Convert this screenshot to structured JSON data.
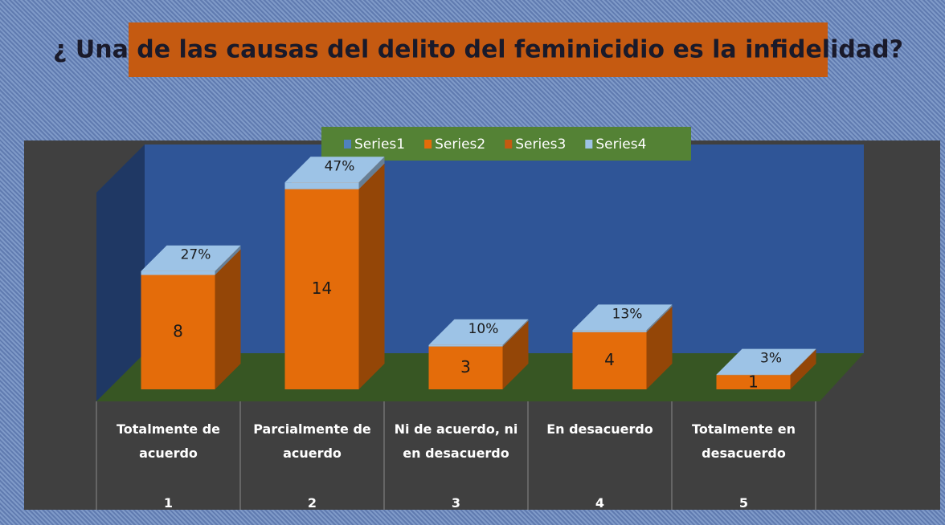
{
  "chart_data": {
    "type": "bar",
    "stacked": true,
    "title": "¿ Una de las causas del delito del feminicidio es la infidelidad?",
    "categories": [
      "Totalmente de acuerdo",
      "Parcialmente de acuerdo",
      "Ni de acuerdo, ni en desacuerdo",
      "En desacuerdo",
      "Totalmente en desacuerdo"
    ],
    "category_numbers": [
      "1",
      "2",
      "3",
      "4",
      "5"
    ],
    "ylim": [
      0,
      16
    ],
    "series": [
      {
        "name": "Series1",
        "color": "#4f81bd",
        "values": [
          null,
          null,
          null,
          null,
          null
        ]
      },
      {
        "name": "Series2",
        "color": "#e46c0a",
        "values": [
          8,
          14,
          3,
          4,
          1
        ]
      },
      {
        "name": "Series3",
        "color": "#c55a11",
        "values": [
          null,
          null,
          null,
          null,
          null
        ]
      },
      {
        "name": "Series4",
        "color": "#9dc3e6",
        "values": [
          0.27,
          0.47,
          0.1,
          0.13,
          0.03
        ],
        "value_labels": [
          "27%",
          "47%",
          "10%",
          "13%",
          "3%"
        ]
      }
    ]
  }
}
